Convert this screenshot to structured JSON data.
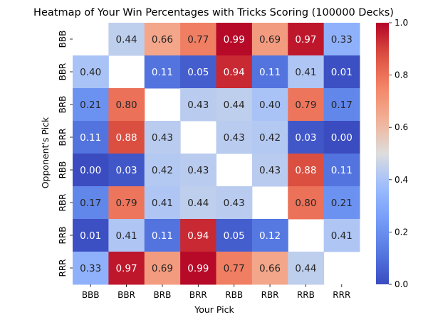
{
  "chart_data": {
    "type": "heatmap",
    "title": "Heatmap of Your Win Percentages with Tricks Scoring (100000 Decks)",
    "xlabel": "Your Pick",
    "ylabel": "Opponent's Pick",
    "x_categories": [
      "BBB",
      "BBR",
      "BRB",
      "BRR",
      "RBB",
      "RBR",
      "RRB",
      "RRR"
    ],
    "y_categories": [
      "BBB",
      "BBR",
      "BRB",
      "BRR",
      "RBB",
      "RBR",
      "RRB",
      "RRR"
    ],
    "values": [
      [
        null,
        0.44,
        0.66,
        0.77,
        0.99,
        0.69,
        0.97,
        0.33
      ],
      [
        0.4,
        null,
        0.11,
        0.05,
        0.94,
        0.11,
        0.41,
        0.01
      ],
      [
        0.21,
        0.8,
        null,
        0.43,
        0.44,
        0.4,
        0.79,
        0.17
      ],
      [
        0.11,
        0.88,
        0.43,
        null,
        0.43,
        0.42,
        0.03,
        0.0
      ],
      [
        0.0,
        0.03,
        0.42,
        0.43,
        null,
        0.43,
        0.88,
        0.11
      ],
      [
        0.17,
        0.79,
        0.41,
        0.44,
        0.43,
        null,
        0.8,
        0.21
      ],
      [
        0.01,
        0.41,
        0.11,
        0.94,
        0.05,
        0.12,
        null,
        0.41
      ],
      [
        0.33,
        0.97,
        0.69,
        0.99,
        0.77,
        0.66,
        0.44,
        null
      ]
    ],
    "value_format": "0.00",
    "colormap": "coolwarm",
    "vmin": 0.0,
    "vmax": 1.0,
    "colorbar_ticks": [
      "0.0",
      "0.2",
      "0.4",
      "0.6",
      "0.8",
      "1.0"
    ],
    "missing_cells": "blank (white)"
  }
}
